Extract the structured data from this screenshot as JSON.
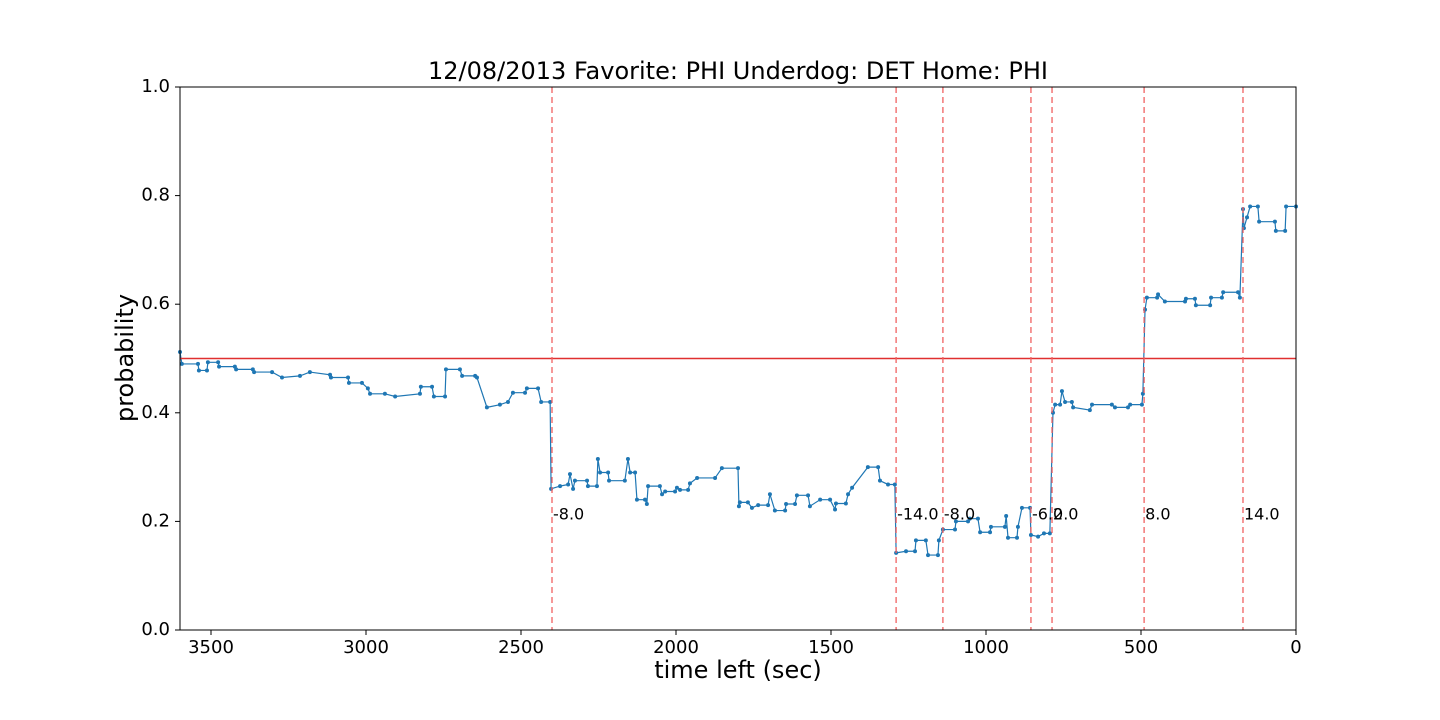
{
  "chart_data": {
    "type": "line",
    "title": "12/08/2013 Favorite: PHI Underdog: DET Home: PHI",
    "x_label": "time left (sec)",
    "y_label": "probability",
    "xlim": [
      3600,
      0
    ],
    "ylim": [
      0,
      1
    ],
    "xticks": [
      3500,
      3000,
      2500,
      2000,
      1500,
      1000,
      500,
      0
    ],
    "yticks": [
      {
        "value": 0,
        "label": "0.0"
      },
      {
        "value": 0.2,
        "label": "0.2"
      },
      {
        "value": 0.4,
        "label": "0.4"
      },
      {
        "value": 0.6,
        "label": "0.6"
      },
      {
        "value": 0.8,
        "label": "0.8"
      },
      {
        "value": 1,
        "label": "1.0"
      }
    ],
    "hline": {
      "value": 0.5,
      "color": "#e03030"
    },
    "events": [
      {
        "x": 2400,
        "label": "-8.0"
      },
      {
        "x": 1290,
        "label": "-14.0"
      },
      {
        "x": 1139,
        "label": "-8.0"
      },
      {
        "x": 855,
        "label": "-6.0"
      },
      {
        "x": 787,
        "label": "2.0"
      },
      {
        "x": 490,
        "label": "8.0"
      },
      {
        "x": 171,
        "label": "14.0"
      }
    ],
    "event_color": "#f06060",
    "x": [
      3600,
      3594,
      3542,
      3539,
      3513,
      3510,
      3477,
      3474,
      3423,
      3419,
      3365,
      3361,
      3303,
      3271,
      3213,
      3181,
      3116,
      3113,
      3058,
      3055,
      3013,
      2994,
      2987,
      2939,
      2906,
      2826,
      2823,
      2787,
      2781,
      2745,
      2742,
      2697,
      2690,
      2648,
      2642,
      2610,
      2568,
      2542,
      2526,
      2487,
      2481,
      2445,
      2435,
      2406,
      2403,
      2374,
      2348,
      2342,
      2332,
      2326,
      2287,
      2284,
      2255,
      2252,
      2245,
      2219,
      2216,
      2165,
      2155,
      2148,
      2132,
      2126,
      2100,
      2094,
      2090,
      2052,
      2045,
      2035,
      2003,
      1997,
      1987,
      1961,
      1955,
      1932,
      1874,
      1852,
      1800,
      1797,
      1794,
      1768,
      1755,
      1735,
      1703,
      1697,
      1681,
      1648,
      1645,
      1616,
      1610,
      1574,
      1568,
      1535,
      1503,
      1487,
      1484,
      1452,
      1445,
      1432,
      1381,
      1348,
      1342,
      1316,
      1294,
      1290,
      1258,
      1229,
      1226,
      1194,
      1187,
      1155,
      1152,
      1139,
      1100,
      1097,
      1058,
      1052,
      1026,
      1019,
      987,
      984,
      939,
      935,
      929,
      900,
      897,
      884,
      858,
      855,
      832,
      813,
      794,
      784,
      777,
      761,
      755,
      745,
      723,
      719,
      665,
      658,
      594,
      584,
      542,
      535,
      497,
      494,
      487,
      481,
      448,
      445,
      423,
      358,
      355,
      326,
      323,
      277,
      274,
      239,
      235,
      187,
      181,
      171,
      168,
      158,
      148,
      123,
      119,
      68,
      65,
      35,
      32,
      0
    ],
    "series": [
      {
        "color": "#1f77b4",
        "values": [
          0.512,
          0.49,
          0.49,
          0.478,
          0.478,
          0.493,
          0.493,
          0.485,
          0.485,
          0.48,
          0.48,
          0.475,
          0.475,
          0.465,
          0.468,
          0.475,
          0.47,
          0.465,
          0.465,
          0.455,
          0.455,
          0.445,
          0.435,
          0.435,
          0.43,
          0.435,
          0.448,
          0.448,
          0.43,
          0.43,
          0.48,
          0.48,
          0.468,
          0.468,
          0.465,
          0.41,
          0.415,
          0.42,
          0.437,
          0.437,
          0.445,
          0.445,
          0.42,
          0.42,
          0.26,
          0.265,
          0.268,
          0.287,
          0.26,
          0.275,
          0.275,
          0.265,
          0.265,
          0.315,
          0.29,
          0.29,
          0.275,
          0.275,
          0.315,
          0.29,
          0.29,
          0.24,
          0.24,
          0.232,
          0.265,
          0.265,
          0.25,
          0.255,
          0.255,
          0.262,
          0.258,
          0.258,
          0.27,
          0.28,
          0.28,
          0.298,
          0.298,
          0.228,
          0.235,
          0.235,
          0.225,
          0.23,
          0.23,
          0.25,
          0.22,
          0.22,
          0.232,
          0.232,
          0.248,
          0.248,
          0.228,
          0.24,
          0.24,
          0.222,
          0.233,
          0.233,
          0.25,
          0.262,
          0.3,
          0.3,
          0.275,
          0.268,
          0.268,
          0.142,
          0.145,
          0.145,
          0.165,
          0.165,
          0.138,
          0.138,
          0.165,
          0.185,
          0.185,
          0.2,
          0.2,
          0.205,
          0.205,
          0.18,
          0.18,
          0.19,
          0.19,
          0.21,
          0.17,
          0.17,
          0.19,
          0.225,
          0.225,
          0.175,
          0.172,
          0.178,
          0.178,
          0.4,
          0.415,
          0.415,
          0.44,
          0.42,
          0.42,
          0.41,
          0.405,
          0.415,
          0.415,
          0.41,
          0.41,
          0.415,
          0.415,
          0.435,
          0.59,
          0.612,
          0.612,
          0.618,
          0.605,
          0.605,
          0.61,
          0.61,
          0.598,
          0.598,
          0.612,
          0.612,
          0.622,
          0.622,
          0.612,
          0.775,
          0.74,
          0.76,
          0.78,
          0.78,
          0.752,
          0.752,
          0.735,
          0.735,
          0.78,
          0.78
        ]
      }
    ]
  }
}
